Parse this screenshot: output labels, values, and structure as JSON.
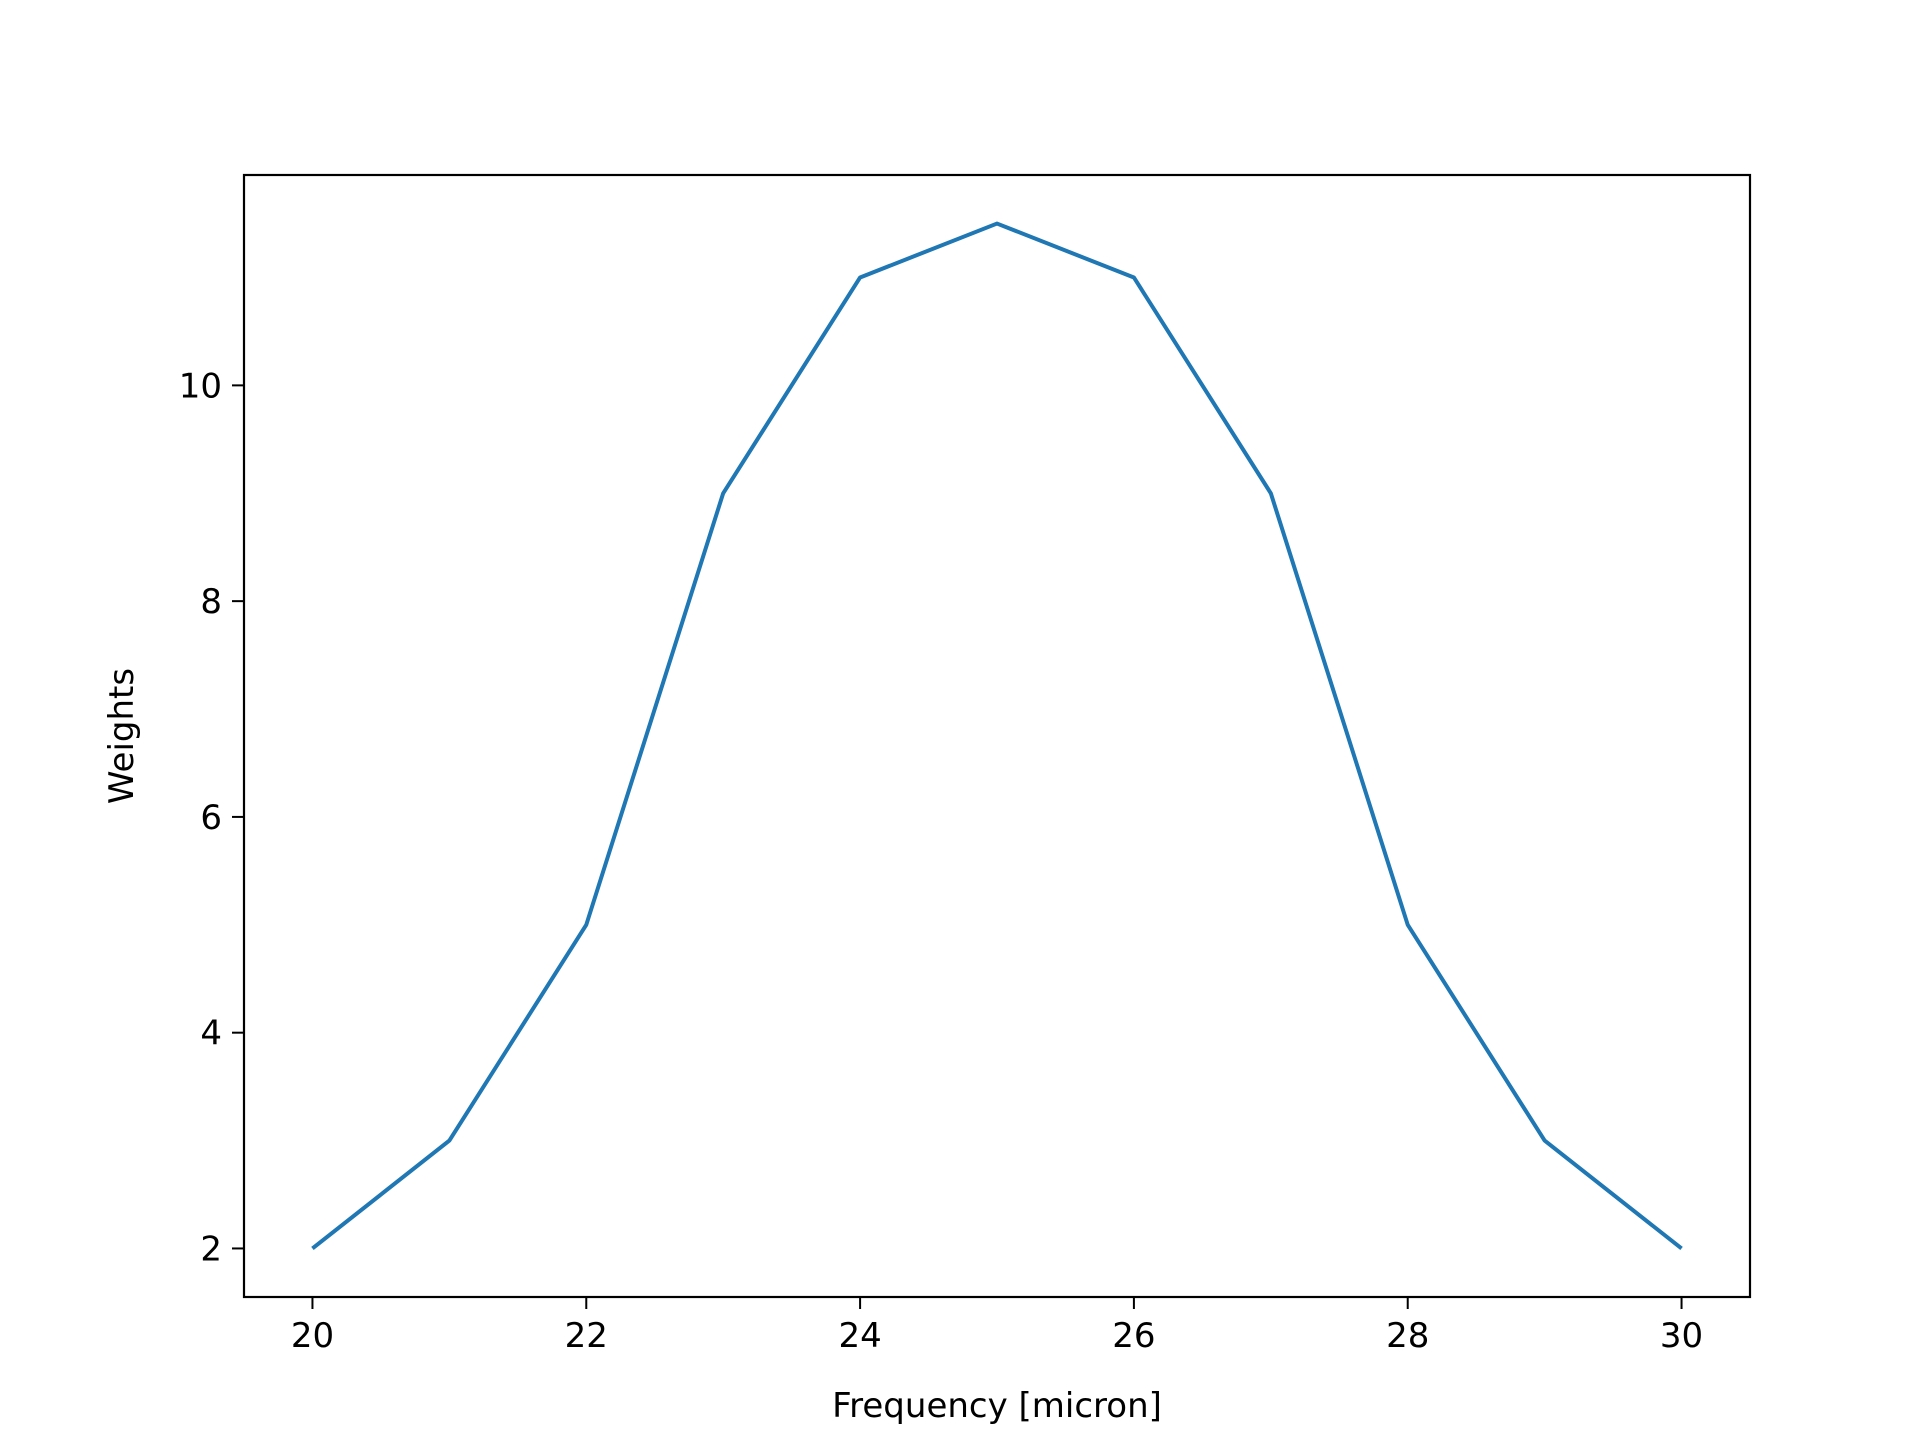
{
  "chart_data": {
    "type": "line",
    "title": "",
    "xlabel": "Frequency [micron]",
    "ylabel": "Weights",
    "xlim": [
      19.5,
      30.5
    ],
    "ylim": [
      1.55,
      11.95
    ],
    "x_ticks": [
      20,
      22,
      24,
      26,
      28,
      30
    ],
    "y_ticks": [
      2,
      4,
      6,
      8,
      10
    ],
    "grid": false,
    "legend": "none",
    "series": [
      {
        "color": "#1f77b4",
        "x": [
          20,
          21,
          22,
          23,
          24,
          25,
          26,
          27,
          28,
          29,
          30
        ],
        "y": [
          2,
          3,
          5,
          9,
          11,
          11.5,
          11,
          9,
          5,
          3,
          2
        ]
      }
    ]
  }
}
